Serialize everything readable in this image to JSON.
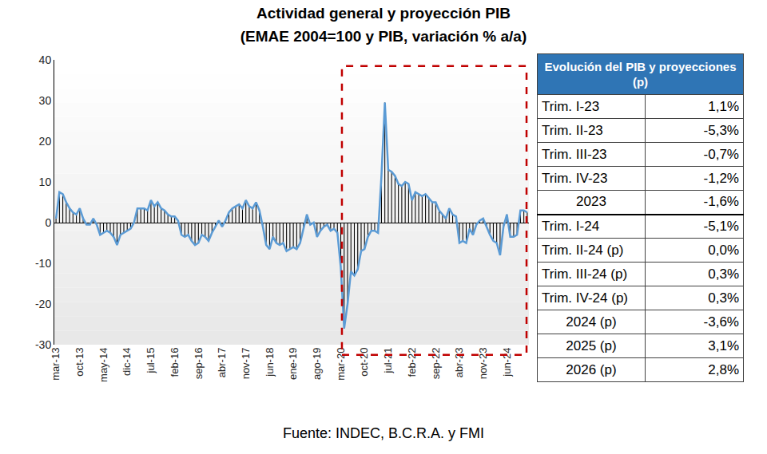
{
  "chart_data": {
    "type": "bar",
    "title": "Actividad general y proyección PIB",
    "subtitle": "(EMAE 2004=100 y PIB, variación % a/a)",
    "categories": [
      "mar-13",
      null,
      null,
      null,
      null,
      null,
      null,
      "oct-13",
      null,
      null,
      null,
      null,
      null,
      null,
      "may-14",
      null,
      null,
      null,
      null,
      null,
      null,
      "dic-14",
      null,
      null,
      null,
      null,
      null,
      null,
      "jul-15",
      null,
      null,
      null,
      null,
      null,
      null,
      "feb-16",
      null,
      null,
      null,
      null,
      null,
      null,
      "sep-16",
      null,
      null,
      null,
      null,
      null,
      null,
      "abr-17",
      null,
      null,
      null,
      null,
      null,
      null,
      "nov-17",
      null,
      null,
      null,
      null,
      null,
      null,
      "jun-18",
      null,
      null,
      null,
      null,
      null,
      null,
      "ene-19",
      null,
      null,
      null,
      null,
      null,
      null,
      "ago-19",
      null,
      null,
      null,
      null,
      null,
      null,
      "mar-20",
      null,
      null,
      null,
      null,
      null,
      null,
      "oct-20",
      null,
      null,
      null,
      null,
      null,
      null,
      "jul-21",
      null,
      null,
      null,
      null,
      null,
      null,
      "feb-22",
      null,
      null,
      null,
      null,
      null,
      null,
      "sep-22",
      null,
      null,
      null,
      null,
      null,
      null,
      "abr-23",
      null,
      null,
      null,
      null,
      null,
      null,
      "nov-23",
      null,
      null,
      null,
      null,
      null,
      null,
      "jun-24",
      null,
      null,
      null,
      null,
      null,
      null
    ],
    "series": [
      {
        "type": "bar",
        "color": "#000000",
        "values": [
          1.0,
          7.5,
          7.0,
          5.0,
          3.5,
          2.5,
          2.0,
          3.5,
          1.0,
          -0.5,
          -0.5,
          1.0,
          -0.5,
          -3.0,
          -2.5,
          -2.0,
          -2.5,
          -3.5,
          -5.5,
          -3.0,
          -2.5,
          -2.0,
          -1.5,
          0.0,
          3.5,
          3.5,
          3.5,
          3.0,
          5.5,
          4.0,
          5.0,
          3.5,
          3.0,
          2.0,
          1.5,
          1.5,
          0.5,
          -3.0,
          -3.5,
          -3.0,
          -4.5,
          -5.5,
          -5.0,
          -3.0,
          -3.5,
          -4.5,
          -2.5,
          -1.0,
          0.5,
          -1.0,
          0.5,
          2.5,
          3.5,
          4.0,
          4.5,
          3.5,
          5.5,
          4.0,
          3.5,
          5.0,
          3.0,
          -1.0,
          -5.5,
          -6.5,
          -3.5,
          -5.0,
          -5.5,
          -5.0,
          -7.0,
          -6.5,
          -6.0,
          -6.5,
          -5.0,
          -1.5,
          2.0,
          -0.5,
          0.0,
          -3.5,
          -2.0,
          -1.0,
          -0.5,
          -2.0,
          -1.5,
          -2.5,
          -11.0,
          -26.0,
          -20.0,
          -12.0,
          -13.0,
          -11.5,
          -7.0,
          -6.5,
          -3.5,
          -2.0,
          -2.0,
          -2.5,
          11.5,
          29.5,
          13.0,
          12.5,
          11.5,
          9.5,
          9.0,
          10.0,
          9.5,
          5.5,
          7.5,
          7.0,
          6.5,
          7.0,
          6.0,
          5.0,
          5.0,
          3.0,
          2.0,
          1.0,
          3.5,
          2.0,
          1.5,
          -5.0,
          -4.5,
          -5.0,
          -1.5,
          -3.0,
          -0.5,
          0.5,
          1.0,
          -1.0,
          -3.0,
          -4.5,
          -5.0,
          -8.0,
          -1.0,
          2.0,
          -3.5,
          -3.5,
          -3.0,
          3.0,
          3.0,
          2.5
        ]
      },
      {
        "type": "line",
        "color": "#5b9bd5",
        "values": [
          1.0,
          7.5,
          7.0,
          5.0,
          3.5,
          2.5,
          2.0,
          3.5,
          1.0,
          -0.5,
          -0.5,
          1.0,
          -0.5,
          -3.0,
          -2.5,
          -2.0,
          -2.5,
          -3.5,
          -5.5,
          -3.0,
          -2.5,
          -2.0,
          -1.5,
          0.0,
          3.5,
          3.5,
          3.5,
          3.0,
          5.5,
          4.0,
          5.0,
          3.5,
          3.0,
          2.0,
          1.5,
          1.5,
          0.5,
          -3.0,
          -3.5,
          -3.0,
          -4.5,
          -5.5,
          -5.0,
          -3.0,
          -3.5,
          -4.5,
          -2.5,
          -1.0,
          0.5,
          -1.0,
          0.5,
          2.5,
          3.5,
          4.0,
          4.5,
          3.5,
          5.5,
          4.0,
          3.5,
          5.0,
          3.0,
          -1.0,
          -5.5,
          -6.5,
          -3.5,
          -5.0,
          -5.5,
          -5.0,
          -7.0,
          -6.5,
          -6.0,
          -6.5,
          -5.0,
          -1.5,
          2.0,
          -0.5,
          0.0,
          -3.5,
          -2.0,
          -1.0,
          -0.5,
          -2.0,
          -1.5,
          -2.5,
          -11.0,
          -26.0,
          -20.0,
          -12.0,
          -13.0,
          -11.5,
          -7.0,
          -6.5,
          -3.5,
          -2.0,
          -2.0,
          -2.5,
          11.5,
          29.5,
          13.0,
          12.5,
          11.5,
          9.5,
          9.0,
          10.0,
          9.5,
          5.5,
          7.5,
          7.0,
          6.5,
          7.0,
          6.0,
          5.0,
          5.0,
          3.0,
          2.0,
          1.0,
          3.5,
          2.0,
          1.5,
          -5.0,
          -4.5,
          -5.0,
          -1.5,
          -3.0,
          -0.5,
          0.5,
          1.0,
          -1.0,
          -3.0,
          -4.5,
          -5.0,
          -8.0,
          -1.0,
          2.0,
          -3.5,
          -3.5,
          -3.0,
          3.0,
          3.0,
          2.5
        ]
      }
    ],
    "ylim": [
      -30,
      40
    ],
    "yticks": [
      -30,
      -20,
      -10,
      0,
      10,
      20,
      30,
      40
    ],
    "grid": false
  },
  "table": {
    "header": "Evolución del PIB y proyecciones (p)",
    "sections": [
      [
        [
          "Trim. I-23",
          "1,1%"
        ],
        [
          "Trim. II-23",
          "-5,3%"
        ],
        [
          "Trim. III-23",
          "-0,7%"
        ],
        [
          "Trim. IV-23",
          "-1,2%"
        ],
        [
          "2023",
          "-1,6%"
        ]
      ],
      [
        [
          "Trim. I-24",
          "-5,1%"
        ],
        [
          "Trim. II-24 (p)",
          "0,0%"
        ],
        [
          "Trim. III-24 (p)",
          "0,3%"
        ],
        [
          "Trim. IV-24 (p)",
          "0,3%"
        ],
        [
          "2024 (p)",
          "-3,6%"
        ],
        [
          "2025 (p)",
          "3,1%"
        ],
        [
          "2026 (p)",
          "2,8%"
        ]
      ]
    ]
  },
  "source": "Fuente: INDEC, B.C.R.A. y FMI"
}
